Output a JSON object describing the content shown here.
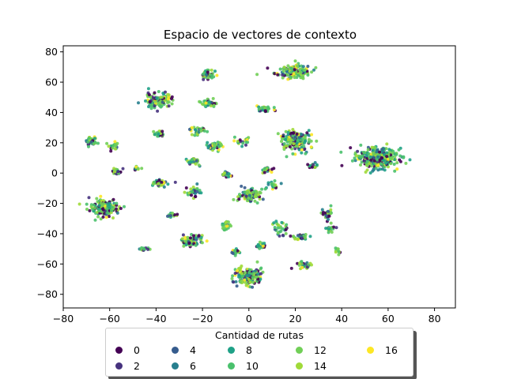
{
  "chart_data": {
    "type": "scatter",
    "title": "Espacio de vectores de contexto",
    "xlabel": "",
    "ylabel": "",
    "xlim": [
      -80,
      89
    ],
    "ylim": [
      -89,
      84
    ],
    "xticks": [
      -80,
      -60,
      -40,
      -20,
      0,
      20,
      40,
      60,
      80
    ],
    "yticks": [
      -80,
      -60,
      -40,
      -20,
      0,
      20,
      40,
      60,
      80
    ],
    "grid": false,
    "colormap": "viridis",
    "color_range": [
      0,
      16
    ],
    "legend": {
      "title": "Cantidad de rutas",
      "placement": "bottom-center",
      "entries": [
        "0",
        "2",
        "4",
        "6",
        "8",
        "10",
        "12",
        "14",
        "16"
      ],
      "colors": [
        "#440154",
        "#46327e",
        "#365c8d",
        "#277f8e",
        "#1fa187",
        "#4ac16d",
        "#71cf57",
        "#a0da39",
        "#fde725"
      ]
    },
    "clusters": [
      {
        "x": 55,
        "y": 10,
        "n": 360,
        "sx": 8,
        "sy": 6
      },
      {
        "x": 19,
        "y": 67,
        "n": 150,
        "sx": 7,
        "sy": 4
      },
      {
        "x": 20,
        "y": 22,
        "n": 180,
        "sx": 6,
        "sy": 6
      },
      {
        "x": -39,
        "y": 48,
        "n": 130,
        "sx": 5,
        "sy": 4
      },
      {
        "x": -62,
        "y": -23,
        "n": 170,
        "sx": 6,
        "sy": 5
      },
      {
        "x": 0,
        "y": -68,
        "n": 160,
        "sx": 5,
        "sy": 5
      },
      {
        "x": 0,
        "y": -15,
        "n": 90,
        "sx": 4,
        "sy": 4
      },
      {
        "x": -25,
        "y": -45,
        "n": 80,
        "sx": 4,
        "sy": 4
      },
      {
        "x": -17,
        "y": 65,
        "n": 40,
        "sx": 3,
        "sy": 3
      },
      {
        "x": -17,
        "y": 46,
        "n": 45,
        "sx": 3,
        "sy": 2
      },
      {
        "x": 7,
        "y": 42,
        "n": 35,
        "sx": 3,
        "sy": 2
      },
      {
        "x": -68,
        "y": 21,
        "n": 45,
        "sx": 2,
        "sy": 3
      },
      {
        "x": -57,
        "y": 1,
        "n": 40,
        "sx": 2,
        "sy": 2
      },
      {
        "x": -39,
        "y": 26,
        "n": 30,
        "sx": 2,
        "sy": 2
      },
      {
        "x": -22,
        "y": 28,
        "n": 30,
        "sx": 3,
        "sy": 2
      },
      {
        "x": -15,
        "y": 18,
        "n": 40,
        "sx": 3,
        "sy": 3
      },
      {
        "x": -38,
        "y": -7,
        "n": 35,
        "sx": 3,
        "sy": 2
      },
      {
        "x": -24,
        "y": -12,
        "n": 30,
        "sx": 3,
        "sy": 3
      },
      {
        "x": -10,
        "y": -1,
        "n": 25,
        "sx": 2,
        "sy": 2
      },
      {
        "x": 8,
        "y": 2,
        "n": 25,
        "sx": 2,
        "sy": 2
      },
      {
        "x": 34,
        "y": -27,
        "n": 35,
        "sx": 2,
        "sy": 3
      },
      {
        "x": 23,
        "y": -42,
        "n": 35,
        "sx": 3,
        "sy": 2
      },
      {
        "x": 35,
        "y": -37,
        "n": 20,
        "sx": 2,
        "sy": 2
      },
      {
        "x": 24,
        "y": -61,
        "n": 35,
        "sx": 3,
        "sy": 2
      },
      {
        "x": 14,
        "y": -37,
        "n": 30,
        "sx": 3,
        "sy": 4
      },
      {
        "x": 5,
        "y": -48,
        "n": 25,
        "sx": 2,
        "sy": 2
      },
      {
        "x": -6,
        "y": -52,
        "n": 20,
        "sx": 2,
        "sy": 2
      },
      {
        "x": -10,
        "y": -35,
        "n": 25,
        "sx": 2,
        "sy": 3
      },
      {
        "x": -33,
        "y": -28,
        "n": 15,
        "sx": 2,
        "sy": 2
      },
      {
        "x": -45,
        "y": -50,
        "n": 15,
        "sx": 2,
        "sy": 1
      },
      {
        "x": -23,
        "y": 8,
        "n": 25,
        "sx": 3,
        "sy": 2
      },
      {
        "x": 27,
        "y": 5,
        "n": 20,
        "sx": 2,
        "sy": 2
      },
      {
        "x": 38,
        "y": -51,
        "n": 10,
        "sx": 1,
        "sy": 2
      },
      {
        "x": -58,
        "y": 18,
        "n": 20,
        "sx": 2,
        "sy": 3
      },
      {
        "x": -3,
        "y": 21,
        "n": 20,
        "sx": 3,
        "sy": 3
      },
      {
        "x": 10,
        "y": -8,
        "n": 20,
        "sx": 3,
        "sy": 3
      },
      {
        "x": -48,
        "y": 3,
        "n": 10,
        "sx": 2,
        "sy": 1
      }
    ]
  }
}
